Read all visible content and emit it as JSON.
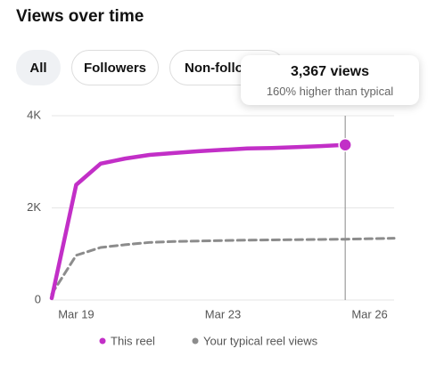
{
  "title": "Views over time",
  "tabs": [
    "All",
    "Followers",
    "Non-followers"
  ],
  "tooltip": {
    "headline": "3,367 views",
    "detail": "160% higher than typical"
  },
  "chart_data": {
    "type": "line",
    "categories": [
      null,
      "Mar 19",
      null,
      null,
      null,
      null,
      null,
      "Mar 23",
      null,
      null,
      null,
      null,
      null,
      "Mar 26",
      null
    ],
    "series": [
      {
        "name": "This reel",
        "color": "#c22fc7",
        "style": "solid",
        "values": [
          40,
          2500,
          2960,
          3070,
          3150,
          3190,
          3230,
          3260,
          3290,
          3300,
          3320,
          3340,
          3367,
          null,
          null
        ]
      },
      {
        "name": "Your typical reel views",
        "color": "#8c8c8c",
        "style": "dashed",
        "values": [
          130,
          970,
          1140,
          1200,
          1250,
          1270,
          1280,
          1290,
          1300,
          1305,
          1310,
          1315,
          1320,
          1330,
          1340
        ]
      }
    ],
    "ylim": [
      0,
      4000
    ],
    "yticks": [
      0,
      {
        "value": 2000,
        "label": "2K"
      },
      {
        "value": 4000,
        "label": "4K"
      }
    ],
    "grid": true
  }
}
